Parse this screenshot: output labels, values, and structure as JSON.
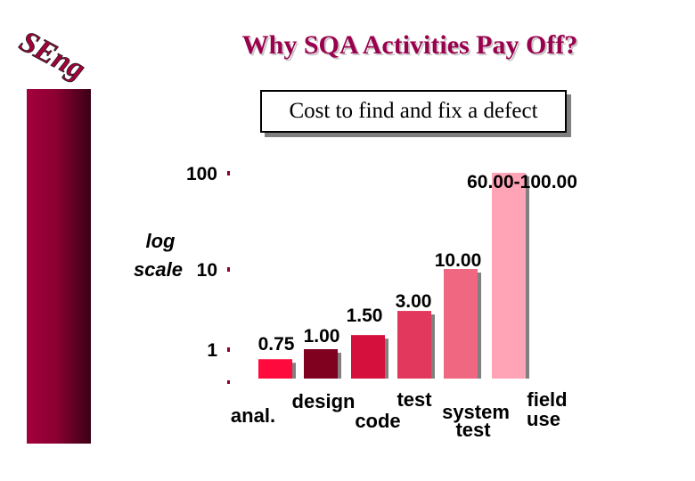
{
  "slide": {
    "title": "Why SQA Activities Pay Off?",
    "logo_text": "SEng"
  },
  "chart_data": {
    "type": "bar",
    "title": "Cost to find and fix a defect",
    "ylabel": "log scale",
    "yscale": "log",
    "ylim": [
      0.6,
      100
    ],
    "yticks": [
      {
        "value": 1,
        "label": "1"
      },
      {
        "value": 10,
        "label": "10"
      },
      {
        "value": 100,
        "label": "100"
      }
    ],
    "categories": [
      {
        "lines": [
          "anal."
        ]
      },
      {
        "lines": [
          "design"
        ]
      },
      {
        "lines": [
          "code"
        ]
      },
      {
        "lines": [
          "test"
        ]
      },
      {
        "lines": [
          "system",
          "test"
        ]
      },
      {
        "lines": [
          "field",
          "use"
        ]
      }
    ],
    "values": [
      0.75,
      1.0,
      1.5,
      3.0,
      10.0,
      100.0
    ],
    "value_labels": [
      "0.75",
      "1.00",
      "1.50",
      "3.00",
      "10.00",
      "60.00-100.00"
    ],
    "colors": [
      "#ff0a3c",
      "#800020",
      "#d5103c",
      "#e2385e",
      "#f06782",
      "#ffa3b6"
    ]
  }
}
